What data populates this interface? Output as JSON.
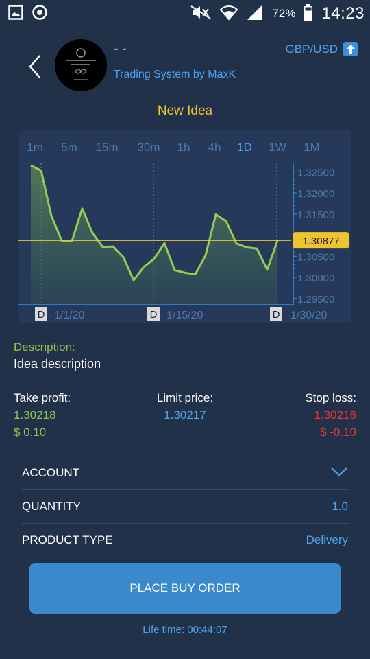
{
  "status_bar": {
    "battery": "72%",
    "time": "14:23"
  },
  "header": {
    "strategy_name": "- -",
    "subtitle": "Trading System by MaxK",
    "pair": "GBP/USD",
    "idea_title": "New Idea"
  },
  "timeframes": [
    {
      "label": "1m",
      "active": false
    },
    {
      "label": "5m",
      "active": false
    },
    {
      "label": "15m",
      "active": false
    },
    {
      "label": "30m",
      "active": false
    },
    {
      "label": "1h",
      "active": false
    },
    {
      "label": "4h",
      "active": false
    },
    {
      "label": "1D",
      "active": true
    },
    {
      "label": "1W",
      "active": false
    },
    {
      "label": "1M",
      "active": false
    }
  ],
  "chart_data": {
    "type": "area",
    "y_ticks": [
      "1.32500",
      "1.32000",
      "1.31500",
      "1.31000",
      "1.30500",
      "1.30000",
      "1.29500"
    ],
    "y_values": [
      1.325,
      1.32,
      1.315,
      1.31,
      1.305,
      1.3,
      1.295
    ],
    "ylim": [
      1.2935,
      1.327
    ],
    "x_labels": [
      {
        "marker": "D",
        "label": "1/1/20"
      },
      {
        "marker": "D",
        "label": "1/15/20"
      },
      {
        "marker": "D",
        "label": "1/30/20"
      }
    ],
    "current_price": "1.30877",
    "current_value": 1.30877,
    "series": [
      {
        "values": [
          1.3265,
          1.3253,
          1.3146,
          1.3087,
          1.3086,
          1.3163,
          1.3105,
          1.3072,
          1.3073,
          1.3048,
          1.2993,
          1.3025,
          1.3044,
          1.3081,
          1.3017,
          1.3011,
          1.3007,
          1.3052,
          1.3149,
          1.3133,
          1.308,
          1.3071,
          1.3068,
          1.3018,
          1.3087
        ]
      }
    ],
    "colors": {
      "line": "#93cd55",
      "price_line": "#f0c430",
      "axis": "#2e8fe0"
    }
  },
  "description": {
    "label": "Description:",
    "text": "Idea description"
  },
  "order": {
    "take_profit_label": "Take profit:",
    "take_profit": "1.30218",
    "take_profit_money": "$ 0.10",
    "limit_label": "Limit price:",
    "limit_price": "1.30217",
    "stop_loss_label": "Stop loss:",
    "stop_loss": "1.30216",
    "stop_loss_money": "$ -0.10"
  },
  "rows": {
    "account_label": "ACCOUNT",
    "quantity_label": "QUANTITY",
    "quantity_value": "1.0",
    "product_label": "PRODUCT TYPE",
    "product_value": "Delivery"
  },
  "buy_button": "PLACE BUY ORDER",
  "lifetime": "Life time: 00:44:07"
}
